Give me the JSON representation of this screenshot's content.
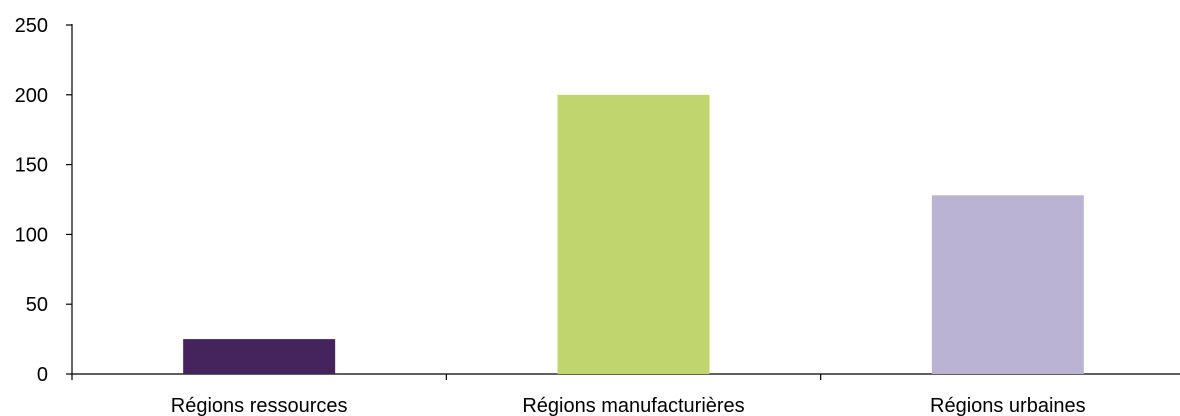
{
  "chart_data": {
    "type": "bar",
    "title": "",
    "title_color": "#3f7fd6",
    "xlabel": "",
    "ylabel": "",
    "categories": [
      "Régions ressources",
      "Régions manufacturières",
      "Régions urbaines"
    ],
    "values": [
      25,
      200,
      128
    ],
    "bar_colors": [
      "#45245e",
      "#c1d56e",
      "#bab3d4"
    ],
    "ylim": [
      0,
      250
    ],
    "yticks": [
      "0",
      "50",
      "100",
      "150",
      "200",
      "250"
    ],
    "grid": false,
    "legend": "none"
  }
}
